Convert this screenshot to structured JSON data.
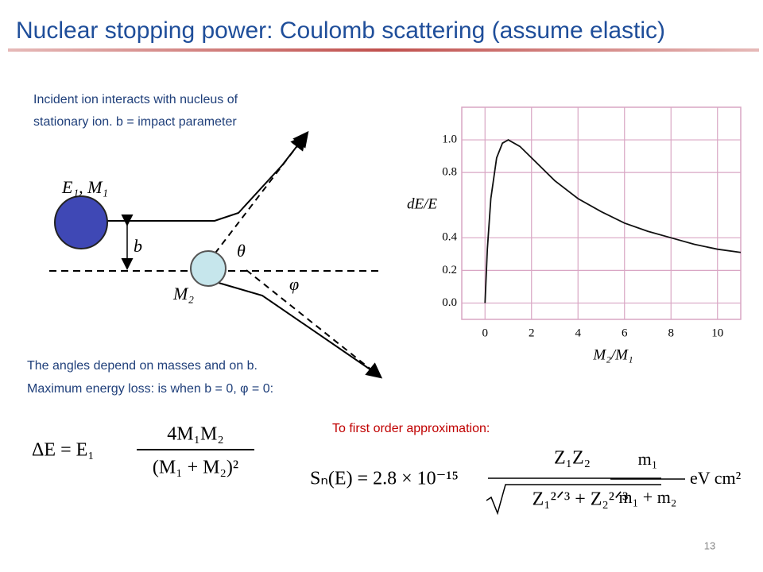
{
  "title": "Nuclear stopping power: Coulomb scattering (assume elastic)",
  "page_number": "13",
  "notes": {
    "incident": [
      "Incident ion interacts with nucleus of",
      "stationary ion. b = impact parameter"
    ],
    "angles": [
      "The angles depend on masses and on b.",
      "Maximum energy loss: is when b = 0, φ = 0:"
    ],
    "approx": "To first order approximation:"
  },
  "diagram": {
    "labels": {
      "projectile": "E₁, M₁",
      "impact": "b",
      "theta": "θ",
      "target": "M₂",
      "phi": "φ"
    }
  },
  "formulas": {
    "energy_loss": {
      "lhs": "ΔE = E₁",
      "numerator": "4M₁M₂",
      "denominator": "(M₁ + M₂)²"
    },
    "stopping": {
      "lhs": "Sₙ(E) = 2.8 × 10⁻¹⁵",
      "numerator1": "Z₁Z₂",
      "denominator1": "Z₁²ᐟ³ + Z₂²ᐟ³",
      "numerator2": "m₁",
      "denominator2": "m₁ + m₂",
      "unit": "eV cm²"
    }
  },
  "chart_data": {
    "type": "line",
    "xlabel": "M₂/M₁",
    "ylabel": "dE/E",
    "x": [
      0,
      0.1,
      0.25,
      0.5,
      0.75,
      1,
      1.5,
      2,
      3,
      4,
      5,
      6,
      7,
      8,
      9,
      10,
      11
    ],
    "values": [
      0,
      0.33,
      0.64,
      0.89,
      0.98,
      1.0,
      0.96,
      0.89,
      0.75,
      0.64,
      0.56,
      0.49,
      0.44,
      0.4,
      0.36,
      0.33,
      0.31
    ],
    "color": "#111111",
    "xlim": [
      -1,
      11
    ],
    "ylim": [
      -0.1,
      1.2
    ],
    "xticks": [
      0,
      2,
      4,
      6,
      8,
      10
    ],
    "yticks": [
      {
        "value": 0,
        "label": "0.0"
      },
      0.2,
      0.4,
      0.8,
      {
        "value": 1,
        "label": "1.0"
      }
    ],
    "grid": true,
    "grid_color": "#d9a6c4"
  }
}
